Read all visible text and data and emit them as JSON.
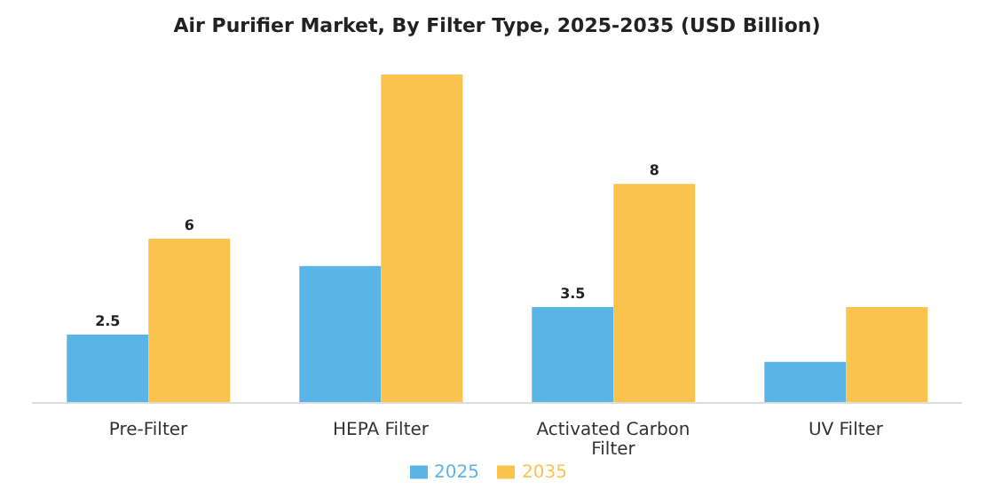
{
  "chart_data": {
    "type": "bar",
    "title": "Air Purifier Market, By Filter Type, 2025-2035 (USD Billion)",
    "categories": [
      "Pre-Filter",
      "HEPA Filter",
      "Activated Carbon Filter",
      "UV Filter"
    ],
    "series": [
      {
        "name": "2025",
        "color": "#5ab4e5",
        "values": [
          2.5,
          5.0,
          3.5,
          1.5
        ],
        "value_labels": [
          "2.5",
          null,
          "3.5",
          null
        ]
      },
      {
        "name": "2035",
        "color": "#f9c34e",
        "values": [
          6,
          12.0,
          8,
          3.5
        ],
        "value_labels": [
          "6",
          null,
          "8",
          null
        ]
      }
    ],
    "grid": false,
    "legend": "bottom"
  }
}
